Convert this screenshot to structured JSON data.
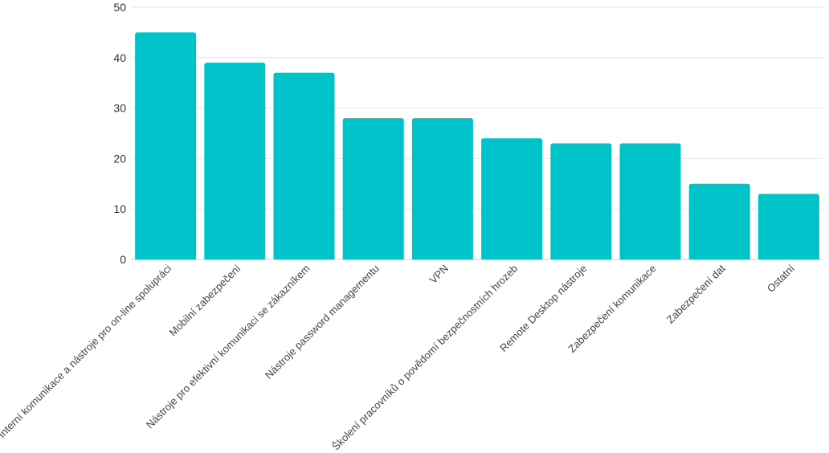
{
  "chart_data": {
    "type": "bar",
    "title": "",
    "xlabel": "",
    "ylabel": "",
    "ylim": [
      0,
      50
    ],
    "yticks": [
      0,
      10,
      20,
      30,
      40,
      50
    ],
    "grid": true,
    "bar_color": "#00c2c9",
    "categories": [
      "Interní komunikace a nástroje pro on-line spolupráci",
      "Mobilní zabezpečení",
      "Nástroje pro efektivní komunikaci se zákazníkem",
      "Nástroje password managementu",
      "VPN",
      "Školení pracovníků o povědomí bezpečnostních hrozeb",
      "Remote Desktop nástroje",
      "Zabezpečení komunikace",
      "Zabezpečení dat",
      "Ostatní"
    ],
    "values": [
      45,
      39,
      37,
      28,
      28,
      24,
      23,
      23,
      15,
      13
    ]
  }
}
